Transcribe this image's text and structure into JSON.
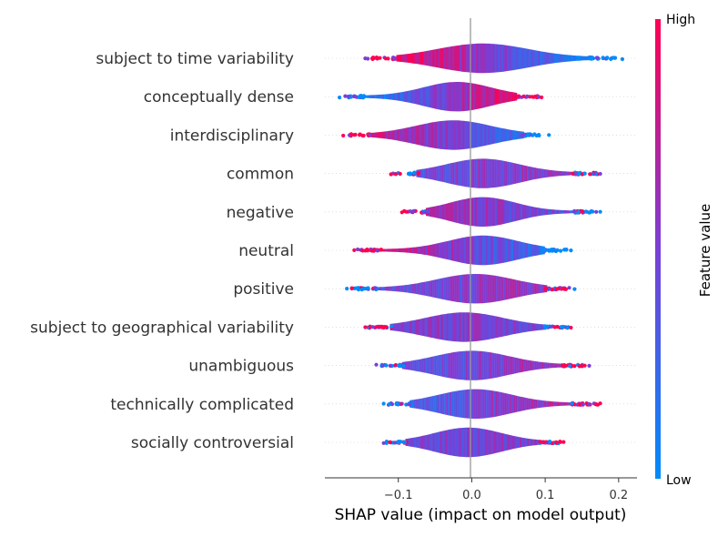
{
  "chart_data": {
    "type": "violin",
    "plot_style": "SHAP summary violin plot (layered)",
    "features": [
      {
        "name": "subject to time variability",
        "range": [
          -0.145,
          0.205
        ],
        "center": 0.015,
        "colorTrend": -1
      },
      {
        "name": "conceptually dense",
        "range": [
          -0.18,
          0.095
        ],
        "center": -0.02,
        "colorTrend": 1
      },
      {
        "name": "interdisciplinary",
        "range": [
          -0.175,
          0.105
        ],
        "center": -0.025,
        "colorTrend": -0.6
      },
      {
        "name": "common",
        "range": [
          -0.11,
          0.175
        ],
        "center": 0.015,
        "colorTrend": 0.2
      },
      {
        "name": "negative",
        "range": [
          -0.095,
          0.175
        ],
        "center": 0.015,
        "colorTrend": -0.3
      },
      {
        "name": "neutral",
        "range": [
          -0.16,
          0.135
        ],
        "center": 0.015,
        "colorTrend": -0.7
      },
      {
        "name": "positive",
        "range": [
          -0.17,
          0.14
        ],
        "center": 0.005,
        "colorTrend": 0.2
      },
      {
        "name": "subject to geographical variability",
        "range": [
          -0.145,
          0.135
        ],
        "center": -0.01,
        "colorTrend": -0.1
      },
      {
        "name": "unambiguous",
        "range": [
          -0.13,
          0.16
        ],
        "center": 0.0,
        "colorTrend": 0.3
      },
      {
        "name": "technically complicated",
        "range": [
          -0.12,
          0.175
        ],
        "center": 0.005,
        "colorTrend": 0.5
      },
      {
        "name": "socially controversial",
        "range": [
          -0.12,
          0.125
        ],
        "center": -0.005,
        "colorTrend": 0.1
      }
    ],
    "x_ticks": [
      -0.1,
      0.0,
      0.1,
      0.2
    ],
    "x_tick_labels": [
      "−0.1",
      "0.0",
      "0.1",
      "0.2"
    ],
    "xlim": [
      -0.2,
      0.225
    ],
    "xlabel": "SHAP value (impact on model output)",
    "colorbar": {
      "title": "Feature value",
      "high_label": "High",
      "low_label": "Low",
      "low_color": "#008bfb",
      "high_color": "#ff0052"
    }
  }
}
